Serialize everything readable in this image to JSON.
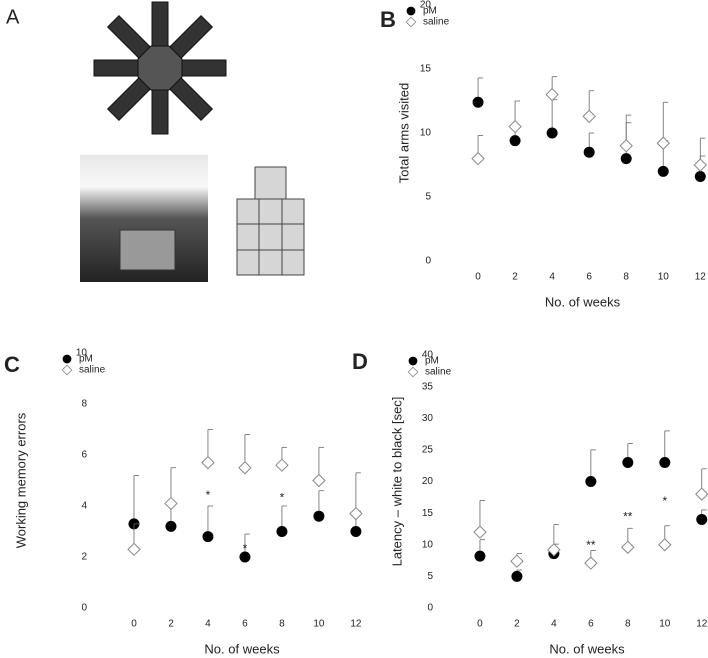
{
  "panel_a_label": "A",
  "chart_data": [
    {
      "type": "scatter",
      "label": "B",
      "x_label": "No. of weeks",
      "y_label": "Total arms visited",
      "x": [
        0,
        2,
        4,
        6,
        8,
        10,
        12
      ],
      "xlim": [
        -2,
        12.2
      ],
      "xticks": [
        0,
        2,
        4,
        6,
        8,
        10,
        12
      ],
      "ylim": [
        0,
        20
      ],
      "yticks": [
        0,
        5,
        10,
        15,
        20
      ],
      "legend": "upper left",
      "series": [
        {
          "name": "pM",
          "color": "#000000",
          "marker": "circle",
          "values": [
            12.4,
            9.4,
            10,
            8.5,
            8,
            7,
            6.6
          ],
          "errors": [
            1.9,
            1.0,
            2.6,
            1.5,
            2.8,
            2.4,
            1.6
          ]
        },
        {
          "name": "saline",
          "color": "#888888",
          "marker": "diamond",
          "values": [
            8,
            10.5,
            13,
            11.3,
            9,
            9.2,
            7.5
          ],
          "errors": [
            1.8,
            2.0,
            1.4,
            2.0,
            2.4,
            3.2,
            2.1
          ]
        }
      ],
      "annotations": []
    },
    {
      "type": "scatter",
      "label": "C",
      "x_label": "No. of weeks",
      "y_label": "Working memory errors",
      "x": [
        0,
        2,
        4,
        6,
        8,
        10,
        12
      ],
      "xlim": [
        -2,
        12.6
      ],
      "xticks": [
        0,
        2,
        4,
        6,
        8,
        10,
        12
      ],
      "ylim": [
        0,
        10
      ],
      "yticks": [
        0,
        2,
        4,
        6,
        8,
        10
      ],
      "legend": "upper left",
      "series": [
        {
          "name": "pM",
          "color": "#000000",
          "marker": "circle",
          "values": [
            3.3,
            3.2,
            2.8,
            2.0,
            3.0,
            3.6,
            3.0
          ],
          "errors": [
            1.9,
            0.9,
            1.2,
            0.9,
            1.0,
            1.0,
            0.8
          ]
        },
        {
          "name": "saline",
          "color": "#888888",
          "marker": "diamond",
          "values": [
            2.3,
            4.1,
            5.7,
            5.5,
            5.6,
            5.0,
            3.7
          ],
          "errors": [
            1.0,
            1.4,
            1.3,
            1.3,
            0.7,
            1.3,
            1.6
          ]
        }
      ],
      "annotations": [
        {
          "text": "*",
          "x": 4,
          "y": 4.4
        },
        {
          "text": "*",
          "x": 6,
          "y": 2.3
        },
        {
          "text": "*",
          "x": 8,
          "y": 4.3
        }
      ]
    },
    {
      "type": "scatter",
      "label": "D",
      "x_label": "No. of weeks",
      "y_label": "Latency – white to black [sec]",
      "x": [
        0,
        2,
        4,
        6,
        8,
        10,
        12
      ],
      "xlim": [
        -2,
        12.5
      ],
      "xticks": [
        0,
        2,
        4,
        6,
        8,
        10,
        12
      ],
      "ylim": [
        0,
        40
      ],
      "yticks": [
        0,
        5,
        10,
        15,
        20,
        25,
        30,
        35,
        40
      ],
      "legend": "upper left",
      "series": [
        {
          "name": "pM",
          "color": "#000000",
          "marker": "circle",
          "values": [
            8.2,
            5,
            8.6,
            20,
            23,
            23,
            14
          ],
          "errors": [
            2.6,
            1.0,
            1.5,
            5,
            3,
            5,
            1.5
          ]
        },
        {
          "name": "saline",
          "color": "#888888",
          "marker": "diamond",
          "values": [
            12,
            7.4,
            9.2,
            7.1,
            9.6,
            10,
            18
          ],
          "errors": [
            5,
            1.2,
            4,
            2,
            3,
            3,
            4
          ]
        }
      ],
      "annotations": [
        {
          "text": "**",
          "x": 6,
          "y": 9.8
        },
        {
          "text": "**",
          "x": 8,
          "y": 14.3
        },
        {
          "text": "*",
          "x": 10,
          "y": 16.8
        }
      ]
    }
  ]
}
